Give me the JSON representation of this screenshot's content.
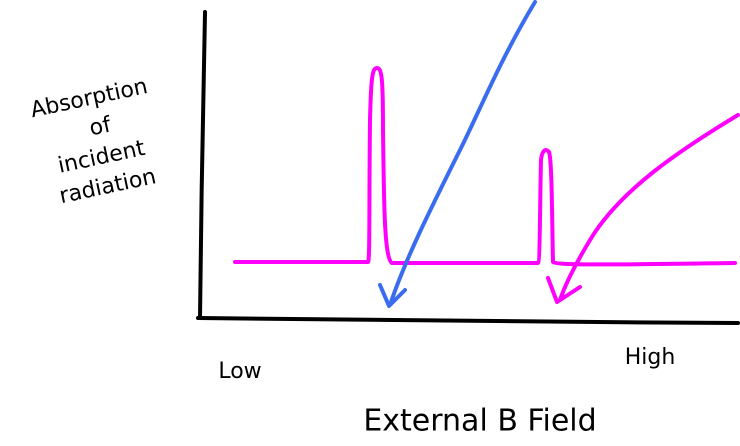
{
  "y_label": [
    "Absorption",
    "of",
    "incident",
    "radiation"
  ],
  "x_min_label": "Low",
  "x_max_label": "High",
  "x_label": "External B Field"
}
